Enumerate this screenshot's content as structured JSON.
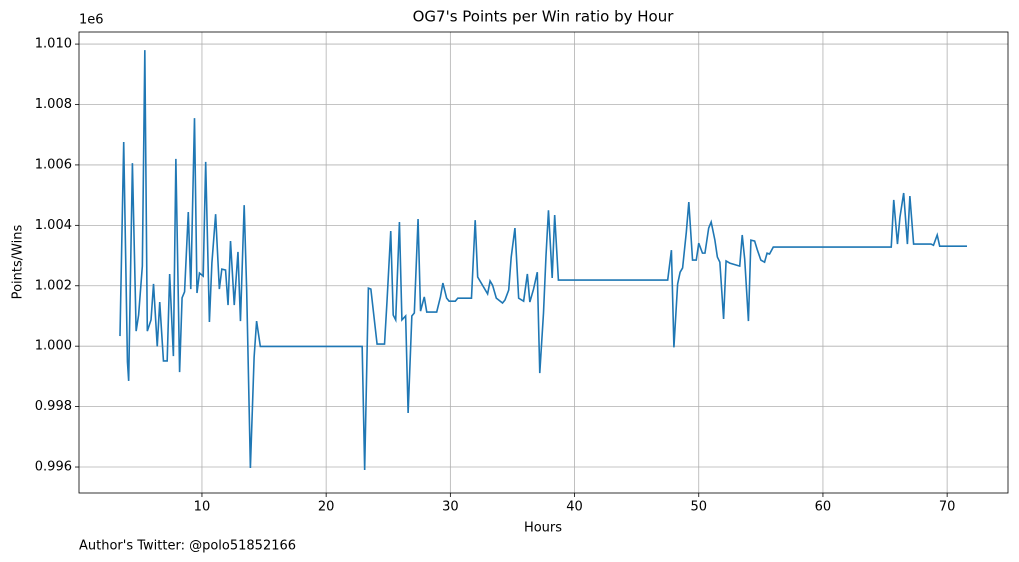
{
  "chart_data": {
    "type": "line",
    "title": "OG7's Points per Win ratio by Hour",
    "xlabel": "Hours",
    "ylabel": "Points/Wins",
    "y_offset": "1e6",
    "annotation": "Author's Twitter: @polo51852166",
    "grid": true,
    "xlim": [
      0.1,
      74.9
    ],
    "xticks": [
      10,
      20,
      30,
      40,
      50,
      60,
      70
    ],
    "ylim": [
      0.99514,
      1.0104
    ],
    "yticks": [
      0.996,
      0.998,
      {
        "value": 1.0,
        "label": "1.000"
      },
      1.002,
      1.004,
      1.006,
      1.008,
      {
        "value": 1.01,
        "label": "1.010"
      }
    ],
    "x": [
      3.4,
      3.7,
      4.0,
      4.1,
      4.4,
      4.7,
      4.9,
      5.2,
      5.4,
      5.6,
      5.9,
      6.1,
      6.4,
      6.6,
      6.9,
      7.2,
      7.4,
      7.7,
      7.9,
      8.2,
      8.4,
      8.6,
      8.9,
      9.1,
      9.4,
      9.6,
      9.8,
      10.1,
      10.3,
      10.6,
      10.8,
      11.1,
      11.4,
      11.6,
      11.9,
      12.1,
      12.3,
      12.6,
      12.9,
      13.1,
      13.4,
      13.6,
      13.9,
      14.2,
      14.4,
      14.7,
      22.9,
      23.1,
      23.4,
      23.6,
      24.1,
      24.7,
      24.9,
      25.2,
      25.4,
      25.6,
      25.9,
      26.1,
      26.4,
      26.6,
      26.9,
      27.1,
      27.4,
      27.6,
      27.9,
      28.1,
      28.9,
      29.2,
      29.4,
      29.7,
      29.9,
      30.4,
      30.6,
      31.7,
      32.0,
      32.2,
      33.0,
      33.2,
      33.4,
      33.7,
      34.2,
      34.4,
      34.7,
      34.9,
      35.2,
      35.5,
      35.9,
      36.2,
      36.4,
      36.7,
      37.0,
      37.2,
      37.5,
      37.7,
      37.9,
      38.2,
      38.4,
      38.7,
      47.5,
      47.8,
      48.0,
      48.3,
      48.5,
      48.7,
      49.0,
      49.2,
      49.5,
      49.8,
      50.0,
      50.3,
      50.5,
      50.8,
      51.0,
      51.3,
      51.5,
      51.7,
      52.0,
      52.2,
      52.5,
      53.3,
      53.5,
      53.7,
      54.0,
      54.2,
      54.5,
      54.7,
      55.0,
      55.3,
      55.5,
      55.7,
      56.0,
      65.5,
      65.7,
      66.0,
      66.2,
      66.5,
      66.8,
      67.0,
      67.3,
      68.7,
      68.9,
      69.2,
      69.4,
      71.6
    ],
    "series": [
      {
        "name": "Points/Wins",
        "color": "#1f77b4",
        "values": [
          1.000335,
          1.00676,
          0.99948,
          0.99885,
          1.00606,
          1.0005,
          1.00103,
          1.00265,
          1.0098,
          1.0005,
          1.00087,
          1.00206,
          0.99999,
          1.00146,
          0.99951,
          0.99951,
          1.00239,
          0.99967,
          1.0062,
          0.99914,
          1.0016,
          1.0018,
          1.00444,
          1.00189,
          1.00755,
          1.00176,
          1.00242,
          1.00232,
          1.0061,
          1.0008,
          1.00275,
          1.00437,
          1.00189,
          1.00255,
          1.00252,
          1.00136,
          1.00348,
          1.00136,
          1.00312,
          1.00083,
          1.00467,
          1.00186,
          0.99597,
          0.99964,
          1.00083,
          0.99999,
          0.99999,
          0.9959,
          1.00192,
          1.00189,
          1.00007,
          1.00007,
          1.00149,
          1.00381,
          1.00103,
          1.00087,
          1.00411,
          1.00087,
          1.001,
          0.99779,
          1.001,
          1.0011,
          1.00421,
          1.00116,
          1.00163,
          1.00113,
          1.00113,
          1.00163,
          1.00209,
          1.00159,
          1.00149,
          1.00149,
          1.00159,
          1.00159,
          1.00417,
          1.00229,
          1.00173,
          1.00216,
          1.00202,
          1.00159,
          1.00143,
          1.00153,
          1.00186,
          1.00295,
          1.00391,
          1.00159,
          1.00149,
          1.00239,
          1.00146,
          1.00189,
          1.00245,
          0.99911,
          1.0011,
          1.00298,
          1.0045,
          1.00226,
          1.00434,
          1.00219,
          1.00219,
          1.00318,
          0.99996,
          1.00206,
          1.00245,
          1.00259,
          1.00378,
          1.00477,
          1.00285,
          1.00285,
          1.00341,
          1.00308,
          1.00308,
          1.00391,
          1.00411,
          1.00351,
          1.00295,
          1.00278,
          1.0009,
          1.00282,
          1.00275,
          1.00265,
          1.00368,
          1.00288,
          1.00083,
          1.00351,
          1.00348,
          1.00321,
          1.00285,
          1.00278,
          1.00308,
          1.00305,
          1.00328,
          1.00328,
          1.00484,
          1.00338,
          1.00427,
          1.00507,
          1.00338,
          1.00497,
          1.00338,
          1.00338,
          1.00334,
          1.00368,
          1.00331,
          1.00331
        ]
      }
    ]
  }
}
